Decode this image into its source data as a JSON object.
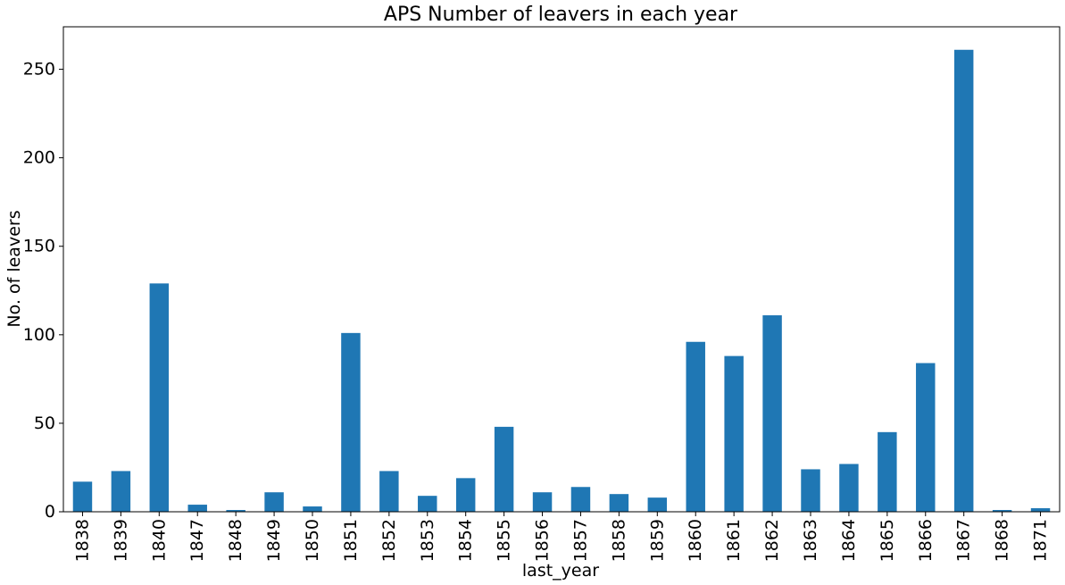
{
  "chart_data": {
    "type": "bar",
    "title": "APS Number of leavers in each year",
    "xlabel": "last_year",
    "ylabel": "No. of leavers",
    "categories": [
      "1838",
      "1839",
      "1840",
      "1847",
      "1848",
      "1849",
      "1850",
      "1851",
      "1852",
      "1853",
      "1854",
      "1855",
      "1856",
      "1857",
      "1858",
      "1859",
      "1860",
      "1861",
      "1862",
      "1863",
      "1864",
      "1865",
      "1866",
      "1867",
      "1868",
      "1871"
    ],
    "values": [
      17,
      23,
      129,
      4,
      1,
      11,
      3,
      101,
      23,
      9,
      19,
      48,
      11,
      14,
      10,
      8,
      96,
      88,
      111,
      24,
      27,
      45,
      84,
      261,
      1,
      2
    ],
    "ylim": [
      0,
      274
    ],
    "yticks": [
      0,
      50,
      100,
      150,
      200,
      250
    ],
    "bar_color": "#1f77b4",
    "grid": false,
    "legend": "none"
  }
}
